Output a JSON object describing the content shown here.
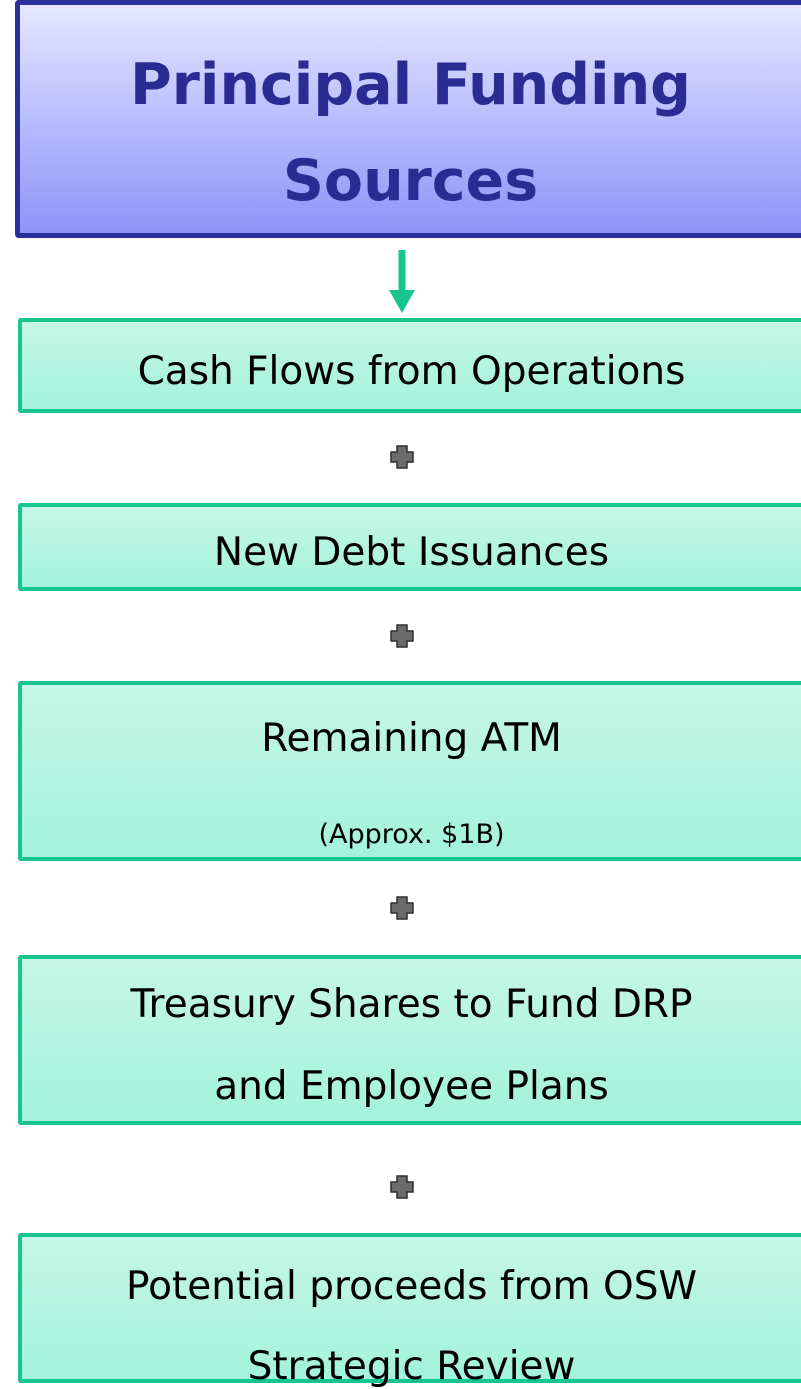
{
  "header": {
    "title_lines": [
      "Principal Funding",
      "Sources"
    ]
  },
  "sources": [
    {
      "lines": [
        "Cash Flows from Operations"
      ]
    },
    {
      "lines": [
        "New Debt Issuances"
      ]
    },
    {
      "lines": [
        "Remaining ATM"
      ],
      "note": "(Approx. $1B)"
    },
    {
      "lines": [
        "Treasury Shares to Fund DRP",
        "and Employee Plans"
      ]
    },
    {
      "lines": [
        "Potential proceeds from OSW",
        "Strategic Review"
      ]
    }
  ]
}
